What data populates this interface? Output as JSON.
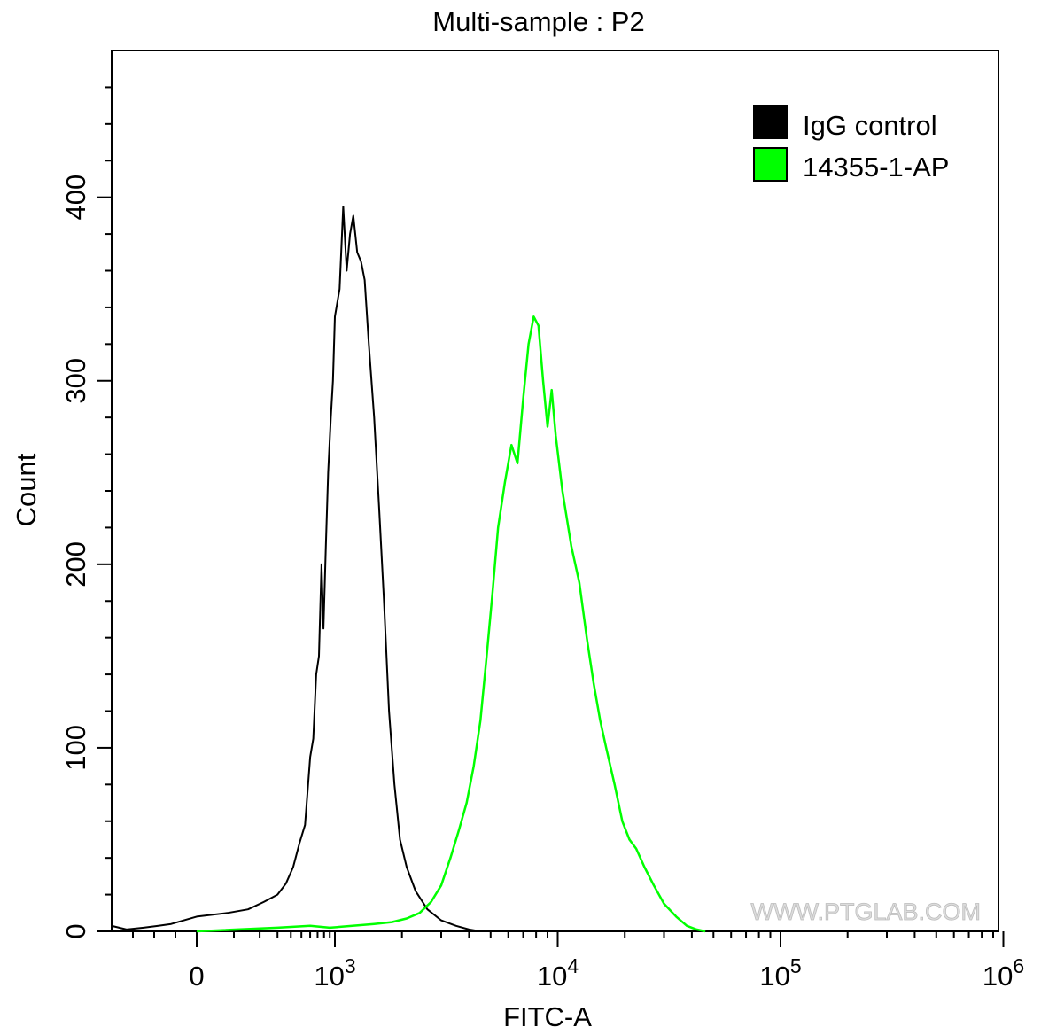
{
  "chart_data": {
    "type": "line",
    "title": "Multi-sample : P2",
    "xlabel": "FITC-A",
    "ylabel": "Count",
    "x_scale": "biexponential",
    "xlim": [
      -400,
      1000000
    ],
    "ylim": [
      0,
      480
    ],
    "x_ticks": [
      {
        "value": 0,
        "label": "0"
      },
      {
        "value": 1000,
        "base": "10",
        "exp": "3"
      },
      {
        "value": 10000,
        "base": "10",
        "exp": "4"
      },
      {
        "value": 100000,
        "base": "10",
        "exp": "5"
      },
      {
        "value": 1000000,
        "base": "10",
        "exp": "6"
      }
    ],
    "y_ticks": [
      0,
      100,
      200,
      300,
      400
    ],
    "grid": false,
    "legend": {
      "position": "top-right",
      "entries": [
        {
          "label": "IgG control",
          "color": "#000000"
        },
        {
          "label": "14355-1-AP",
          "color": "#00ff00"
        }
      ]
    },
    "watermark": "WWW.PTGLAB.COM",
    "series": [
      {
        "name": "IgG control",
        "color": "#000000",
        "points": [
          [
            -400,
            3
          ],
          [
            -330,
            1
          ],
          [
            -250,
            2
          ],
          [
            -180,
            3
          ],
          [
            -120,
            4
          ],
          [
            -60,
            6
          ],
          [
            0,
            8
          ],
          [
            80,
            10
          ],
          [
            150,
            12
          ],
          [
            220,
            16
          ],
          [
            300,
            20
          ],
          [
            360,
            26
          ],
          [
            420,
            35
          ],
          [
            480,
            48
          ],
          [
            540,
            58
          ],
          [
            600,
            95
          ],
          [
            640,
            105
          ],
          [
            680,
            140
          ],
          [
            720,
            150
          ],
          [
            760,
            200
          ],
          [
            790,
            165
          ],
          [
            830,
            210
          ],
          [
            870,
            250
          ],
          [
            920,
            280
          ],
          [
            960,
            300
          ],
          [
            1000,
            335
          ],
          [
            1050,
            350
          ],
          [
            1090,
            395
          ],
          [
            1130,
            360
          ],
          [
            1170,
            380
          ],
          [
            1210,
            390
          ],
          [
            1260,
            370
          ],
          [
            1310,
            365
          ],
          [
            1360,
            355
          ],
          [
            1420,
            320
          ],
          [
            1500,
            280
          ],
          [
            1580,
            230
          ],
          [
            1660,
            180
          ],
          [
            1750,
            120
          ],
          [
            1850,
            80
          ],
          [
            1960,
            50
          ],
          [
            2100,
            35
          ],
          [
            2300,
            22
          ],
          [
            2600,
            12
          ],
          [
            3000,
            6
          ],
          [
            3500,
            3
          ],
          [
            4000,
            1
          ],
          [
            4500,
            0
          ]
        ]
      },
      {
        "name": "14355-1-AP",
        "color": "#00ff00",
        "points": [
          [
            0,
            0
          ],
          [
            300,
            2
          ],
          [
            600,
            3
          ],
          [
            900,
            2
          ],
          [
            1200,
            3
          ],
          [
            1500,
            4
          ],
          [
            1800,
            5
          ],
          [
            2100,
            7
          ],
          [
            2400,
            10
          ],
          [
            2700,
            16
          ],
          [
            3000,
            25
          ],
          [
            3300,
            40
          ],
          [
            3600,
            55
          ],
          [
            3900,
            70
          ],
          [
            4200,
            90
          ],
          [
            4500,
            115
          ],
          [
            4800,
            150
          ],
          [
            5100,
            185
          ],
          [
            5400,
            220
          ],
          [
            5800,
            245
          ],
          [
            6200,
            265
          ],
          [
            6600,
            255
          ],
          [
            7000,
            290
          ],
          [
            7400,
            320
          ],
          [
            7800,
            335
          ],
          [
            8200,
            330
          ],
          [
            8600,
            300
          ],
          [
            9000,
            275
          ],
          [
            9400,
            295
          ],
          [
            9800,
            270
          ],
          [
            10500,
            240
          ],
          [
            11500,
            210
          ],
          [
            12500,
            190
          ],
          [
            13500,
            160
          ],
          [
            14500,
            135
          ],
          [
            15500,
            115
          ],
          [
            16500,
            100
          ],
          [
            18000,
            80
          ],
          [
            19500,
            60
          ],
          [
            21000,
            50
          ],
          [
            22500,
            45
          ],
          [
            24500,
            35
          ],
          [
            27000,
            25
          ],
          [
            30000,
            15
          ],
          [
            34000,
            8
          ],
          [
            38000,
            3
          ],
          [
            42000,
            1
          ],
          [
            46000,
            0
          ]
        ]
      }
    ]
  }
}
